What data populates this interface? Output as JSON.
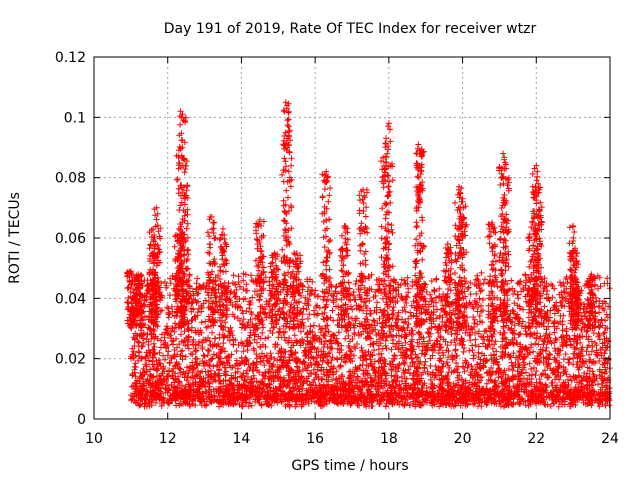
{
  "chart_data": {
    "type": "scatter",
    "title": "Day 191 of 2019, Rate Of TEC Index for receiver wtzr",
    "xlabel": "GPS time / hours",
    "ylabel": "ROTI / TECUs",
    "xlim": [
      10,
      24
    ],
    "ylim": [
      0,
      0.12
    ],
    "xticks": [
      "10",
      "12",
      "14",
      "16",
      "18",
      "20",
      "22",
      "24"
    ],
    "yticks": [
      "0",
      "0.02",
      "0.04",
      "0.06",
      "0.08",
      "0.1",
      "0.12"
    ],
    "grid": true,
    "marker": "plus",
    "color": "#ff0000",
    "series": [
      {
        "name": "ROTI",
        "data_range_x": [
          11.0,
          24.0
        ],
        "baseline_range_y": [
          0.004,
          0.045
        ],
        "spikes": [
          {
            "x": 11.0,
            "y": 0.049
          },
          {
            "x": 11.2,
            "y": 0.048
          },
          {
            "x": 11.6,
            "y": 0.063
          },
          {
            "x": 11.7,
            "y": 0.07
          },
          {
            "x": 12.3,
            "y": 0.063
          },
          {
            "x": 12.35,
            "y": 0.102
          },
          {
            "x": 12.4,
            "y": 0.101
          },
          {
            "x": 12.45,
            "y": 0.086
          },
          {
            "x": 13.2,
            "y": 0.067
          },
          {
            "x": 13.5,
            "y": 0.063
          },
          {
            "x": 14.5,
            "y": 0.066
          },
          {
            "x": 14.9,
            "y": 0.055
          },
          {
            "x": 15.2,
            "y": 0.105
          },
          {
            "x": 15.25,
            "y": 0.099
          },
          {
            "x": 15.5,
            "y": 0.055
          },
          {
            "x": 16.3,
            "y": 0.082
          },
          {
            "x": 16.8,
            "y": 0.064
          },
          {
            "x": 17.3,
            "y": 0.076
          },
          {
            "x": 17.9,
            "y": 0.087
          },
          {
            "x": 18.0,
            "y": 0.098
          },
          {
            "x": 18.8,
            "y": 0.091
          },
          {
            "x": 18.85,
            "y": 0.089
          },
          {
            "x": 19.6,
            "y": 0.058
          },
          {
            "x": 19.9,
            "y": 0.077
          },
          {
            "x": 20.0,
            "y": 0.072
          },
          {
            "x": 20.8,
            "y": 0.065
          },
          {
            "x": 21.1,
            "y": 0.088
          },
          {
            "x": 21.15,
            "y": 0.085
          },
          {
            "x": 21.9,
            "y": 0.065
          },
          {
            "x": 22.0,
            "y": 0.084
          },
          {
            "x": 22.05,
            "y": 0.078
          },
          {
            "x": 23.0,
            "y": 0.064
          },
          {
            "x": 23.05,
            "y": 0.056
          },
          {
            "x": 23.5,
            "y": 0.048
          }
        ]
      }
    ]
  }
}
